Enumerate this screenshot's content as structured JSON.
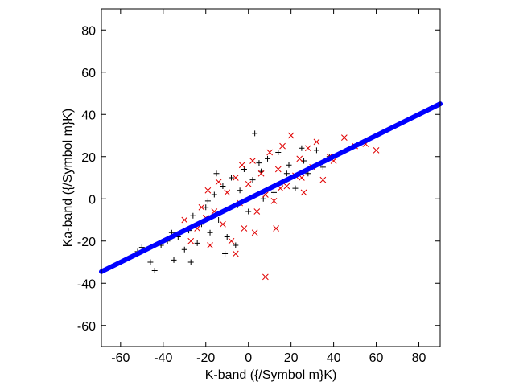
{
  "chart_data": {
    "type": "scatter",
    "title": "",
    "xlabel": "K-band ({/Symbol m}K)",
    "ylabel": "Ka-band ({/Symbol m}K)",
    "xlim": [
      -69,
      90
    ],
    "ylim": [
      -70,
      90
    ],
    "x_ticks": [
      -60,
      -40,
      -20,
      0,
      20,
      40,
      60,
      80
    ],
    "y_ticks": [
      -60,
      -40,
      -20,
      0,
      20,
      40,
      60,
      80
    ],
    "grid": false,
    "legend": "none",
    "series": [
      {
        "marker": "plus",
        "color": "#000000",
        "points": [
          [
            -50,
            -23
          ],
          [
            -46,
            -30
          ],
          [
            -44,
            -34
          ],
          [
            -41,
            -22
          ],
          [
            -38,
            -20
          ],
          [
            -35,
            -29
          ],
          [
            -33,
            -18
          ],
          [
            -30,
            -24
          ],
          [
            -28,
            -15
          ],
          [
            -26,
            -8
          ],
          [
            -24,
            -21
          ],
          [
            -22,
            -12
          ],
          [
            -20,
            -4
          ],
          [
            -18,
            -16
          ],
          [
            -16,
            2
          ],
          [
            -14,
            -10
          ],
          [
            -12,
            6
          ],
          [
            -10,
            -18
          ],
          [
            -8,
            10
          ],
          [
            -6,
            -22
          ],
          [
            -4,
            4
          ],
          [
            -2,
            14
          ],
          [
            0,
            -6
          ],
          [
            2,
            9
          ],
          [
            3,
            31
          ],
          [
            5,
            17
          ],
          [
            7,
            0
          ],
          [
            9,
            19
          ],
          [
            12,
            3
          ],
          [
            14,
            22
          ],
          [
            16,
            8
          ],
          [
            19,
            16
          ],
          [
            22,
            5
          ],
          [
            25,
            24
          ],
          [
            28,
            12
          ],
          [
            32,
            23
          ],
          [
            35,
            15
          ],
          [
            38,
            20
          ],
          [
            -27,
            -30
          ],
          [
            -11,
            -26
          ],
          [
            -15,
            12
          ],
          [
            -52,
            -25
          ],
          [
            -36,
            -16
          ],
          [
            -19,
            -1
          ],
          [
            -5,
            -3
          ],
          [
            6,
            13
          ],
          [
            18,
            12
          ],
          [
            26,
            18
          ]
        ]
      },
      {
        "marker": "x",
        "color": "#e00000",
        "points": [
          [
            -30,
            -10
          ],
          [
            -27,
            -20
          ],
          [
            -24,
            -14
          ],
          [
            -22,
            -4
          ],
          [
            -20,
            -9
          ],
          [
            -18,
            -22
          ],
          [
            -16,
            -6
          ],
          [
            -14,
            8
          ],
          [
            -12,
            -12
          ],
          [
            -10,
            3
          ],
          [
            -8,
            -20
          ],
          [
            -6,
            10
          ],
          [
            -4,
            -2
          ],
          [
            -2,
            -14
          ],
          [
            0,
            7
          ],
          [
            2,
            18
          ],
          [
            4,
            -6
          ],
          [
            6,
            12
          ],
          [
            8,
            2
          ],
          [
            10,
            22
          ],
          [
            12,
            -1
          ],
          [
            14,
            14
          ],
          [
            16,
            25
          ],
          [
            18,
            6
          ],
          [
            20,
            30
          ],
          [
            22,
            11
          ],
          [
            24,
            19
          ],
          [
            26,
            3
          ],
          [
            28,
            24
          ],
          [
            30,
            15
          ],
          [
            32,
            27
          ],
          [
            35,
            9
          ],
          [
            38,
            20
          ],
          [
            40,
            18
          ],
          [
            45,
            29
          ],
          [
            50,
            25
          ],
          [
            55,
            26
          ],
          [
            60,
            23
          ],
          [
            8,
            -37
          ],
          [
            -6,
            -26
          ],
          [
            13,
            -14
          ],
          [
            -3,
            16
          ],
          [
            3,
            -16
          ],
          [
            25,
            10
          ],
          [
            -19,
            4
          ],
          [
            15,
            5
          ]
        ]
      },
      {
        "marker": "dot",
        "color": "#0000ff",
        "fit": {
          "slope": 0.5,
          "intercept": 0,
          "x_from": -69,
          "x_to": 90
        }
      }
    ]
  }
}
